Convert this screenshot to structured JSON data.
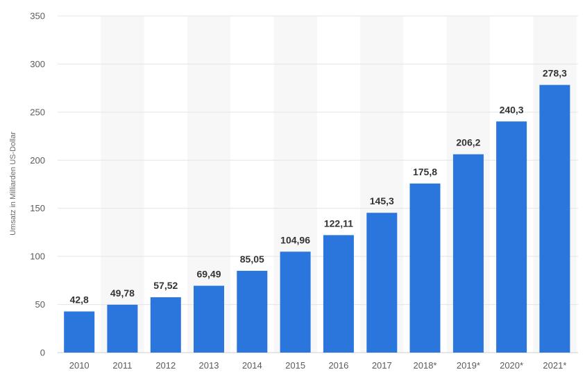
{
  "chart_data": {
    "type": "bar",
    "categories": [
      "2010",
      "2011",
      "2012",
      "2013",
      "2014",
      "2015",
      "2016",
      "2017",
      "2018*",
      "2019*",
      "2020*",
      "2021*"
    ],
    "values": [
      42.8,
      49.78,
      57.52,
      69.49,
      85.05,
      104.96,
      122.11,
      145.3,
      175.8,
      206.2,
      240.3,
      278.3
    ],
    "value_labels": [
      "42,8",
      "49,78",
      "57,52",
      "69,49",
      "85,05",
      "104,96",
      "122,11",
      "145,3",
      "175,8",
      "206,2",
      "240,3",
      "278,3"
    ],
    "ylabel": "Umsatz in Milliarden US-Dollar",
    "xlabel": "",
    "ylim": [
      0,
      350
    ],
    "yticks": [
      "0",
      "50",
      "100",
      "150",
      "200",
      "250",
      "300",
      "350"
    ],
    "grid": true,
    "alternating_column_background": true,
    "bar_color": "#2a76dd",
    "band_color": "#f7f7f7",
    "grid_color": "#e4e4e4"
  }
}
